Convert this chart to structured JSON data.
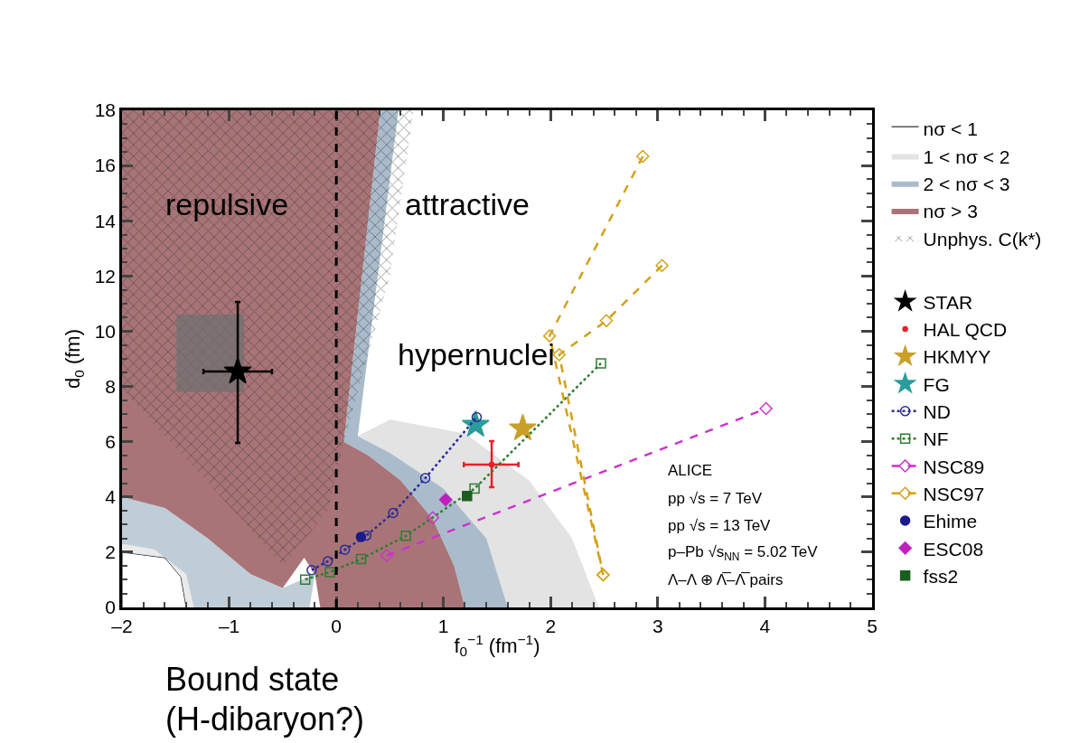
{
  "chart_data": {
    "type": "scatter",
    "xlabel": "f$_{0}$$^{−1}$ (fm$^{−1}$)",
    "ylabel": "d$_{0}$ (fm)",
    "xlim": [
      -2,
      5
    ],
    "xticks": [
      {
        "value": -2,
        "label": "–2"
      },
      {
        "value": -1,
        "label": "–1"
      },
      0,
      1,
      2,
      3,
      4,
      5
    ],
    "ylim": [
      0,
      18
    ],
    "yticks": [
      0,
      2,
      4,
      6,
      8,
      10,
      12,
      14,
      16,
      18
    ],
    "legend": "right",
    "ref_lines": [
      {
        "axis": "x",
        "value": 0,
        "color": "#000000",
        "line_style": "dashed"
      }
    ],
    "series": [
      {
        "type": "area",
        "name": "nσ < 1",
        "color": "#ffffff",
        "x": [
          -2,
          -2,
          -1.6,
          -1.45,
          -1.4
        ],
        "values": [
          0,
          2.0,
          1.8,
          1.1,
          0
        ]
      },
      {
        "type": "area",
        "name": "1 < nσ < 2",
        "color": "#e3e3e3",
        "x": [
          0.2,
          0.5,
          1.2,
          1.8,
          2.2,
          2.45,
          1.6,
          1.4,
          1.0,
          0.5
        ],
        "values": [
          6.2,
          6.8,
          6.3,
          4.6,
          2.5,
          0,
          0,
          2.5,
          4.3,
          5.6
        ]
      },
      {
        "type": "area",
        "color": "#e3e3e3",
        "x": [
          -2,
          -1.7,
          -1.4,
          -1.33,
          -1.4,
          -1.45,
          -1.6,
          -2
        ],
        "values": [
          2.3,
          2.1,
          1.2,
          0,
          0,
          1.1,
          1.8,
          2.0
        ]
      },
      {
        "type": "area",
        "name": "2 < nσ < 3",
        "color": "#aabccb",
        "x": [
          0.41,
          0.58,
          0.2,
          0.5,
          1.0,
          1.4,
          1.6,
          1.2,
          1.1,
          0.9,
          0.6,
          0.3,
          0.07
        ],
        "values": [
          18,
          18,
          6.2,
          5.6,
          4.3,
          2.5,
          0,
          0,
          1.5,
          3.2,
          4.6,
          5.5,
          6
        ]
      },
      {
        "type": "area",
        "color": "#aabccb",
        "x": [
          -2,
          -1.6,
          -1.2,
          -0.8,
          -0.5,
          -0.2,
          -0.25,
          -1.33,
          -1.4,
          -1.7,
          -2
        ],
        "values": [
          4.0,
          3.6,
          2.5,
          1.2,
          0.7,
          1.2,
          0,
          0,
          1.2,
          2.1,
          2.3
        ]
      },
      {
        "type": "area",
        "name": "nσ > 3",
        "color": "#a97477",
        "x": [
          -2,
          0.41,
          0.07,
          0.3,
          0.6,
          0.9,
          1.1,
          1.2,
          -0.15,
          -0.2,
          -0.3,
          -0.5,
          -0.8,
          -1.2,
          -1.6,
          -2
        ],
        "values": [
          18,
          18,
          6,
          5.5,
          4.6,
          3.2,
          1.5,
          0,
          0,
          1.2,
          1.8,
          0.7,
          1.2,
          2.5,
          3.6,
          4.0
        ]
      },
      {
        "type": "area",
        "name": "Unphys. C(k*)",
        "color": "#333333",
        "x": [
          -2,
          0.72,
          0.5,
          0.07,
          -0.08,
          -0.5,
          -1.1,
          -2
        ],
        "values": [
          18,
          18,
          12,
          6,
          3.5,
          1.5,
          4.1,
          7.9
        ]
      },
      {
        "type": "area",
        "color": "#707070",
        "x": [
          -1.49,
          -0.86,
          -0.86,
          -1.49
        ],
        "values": [
          7.8,
          7.8,
          10.6,
          10.6
        ]
      },
      {
        "name": "STAR",
        "color": "#000000",
        "marker": "star",
        "x": [
          -0.92
        ],
        "values": [
          8.54
        ],
        "errors": [
          [
            5.96,
            11.06
          ]
        ],
        "xerrors": [
          [
            -1.24,
            -0.6
          ]
        ]
      },
      {
        "name": "HAL QCD",
        "color": "#e8202a",
        "x": [
          1.45
        ],
        "values": [
          5.17
        ],
        "errors": [
          [
            4.35,
            6.02
          ]
        ],
        "xerrors": [
          [
            1.19,
            1.7
          ]
        ]
      },
      {
        "name": "HKMYY",
        "color": "#c9a02a",
        "marker": "star",
        "x": [
          1.74
        ],
        "values": [
          6.48
        ]
      },
      {
        "name": "FG",
        "color": "#2a9d9a",
        "marker": "star",
        "x": [
          1.3
        ],
        "values": [
          6.61
        ]
      },
      {
        "type": "line",
        "name": "ND",
        "color": "#2b2b96",
        "marker": "circle",
        "line_style": "dotted",
        "x": [
          -0.23,
          -0.08,
          0.08,
          0.28,
          0.53,
          0.83,
          1.31
        ],
        "values": [
          1.35,
          1.67,
          2.09,
          2.6,
          3.42,
          4.68,
          6.89
        ]
      },
      {
        "type": "line",
        "name": "NF",
        "color": "#2e7d32",
        "marker": "square",
        "line_style": "dotted",
        "x": [
          -0.29,
          -0.06,
          0.23,
          0.65,
          1.29,
          2.47
        ],
        "values": [
          1.01,
          1.28,
          1.75,
          2.59,
          4.3,
          8.84
        ]
      },
      {
        "type": "line",
        "name": "NSC89",
        "color": "#cc33cc",
        "marker": "diamond",
        "line_style": "dashed",
        "x": [
          0.9,
          0.7,
          0.47,
          4.01
        ],
        "values": [
          3.25,
          null,
          1.88,
          7.2
        ]
      },
      {
        "type": "line",
        "name": "NSC97",
        "color": "#d4a017",
        "marker": "diamond",
        "line_style": "dashed",
        "x": [
          2.86,
          1.99,
          2.49
        ],
        "values": [
          16.33,
          9.83,
          1.18
        ]
      },
      {
        "type": "line",
        "color": "#d4a017",
        "marker": "diamond",
        "line_style": "dashed",
        "x": [
          3.04,
          2.52,
          2.08,
          2.49
        ],
        "values": [
          12.38,
          10.38,
          9.15,
          1.18
        ]
      },
      {
        "name": "Ehime",
        "color": "#1a1a8a",
        "marker": "circle",
        "x": [
          0.23
        ],
        "values": [
          2.55
        ]
      },
      {
        "name": "ESC08",
        "color": "#c020c0",
        "marker": "diamond",
        "x": [
          1.02
        ],
        "values": [
          3.9
        ]
      },
      {
        "name": "fss2",
        "color": "#1b5e20",
        "marker": "square",
        "x": [
          1.22
        ],
        "values": [
          4.03
        ]
      }
    ],
    "annotations": [
      {
        "text": "repulsive"
      },
      {
        "text": "attractive"
      },
      {
        "text": "hypernuclei"
      },
      {
        "text": "ALICE"
      },
      {
        "text": "pp √s = 7 TeV"
      },
      {
        "text": "pp √s = 13 TeV"
      },
      {
        "text": "p–Pb √s$_{NN}$ = 5.02 TeV"
      },
      {
        "text": "Λ–Λ ⊕ Λ̅–Λ̅ pairs"
      },
      {
        "text": "Bound state"
      },
      {
        "text": "(H-dibaryon?)"
      }
    ]
  }
}
